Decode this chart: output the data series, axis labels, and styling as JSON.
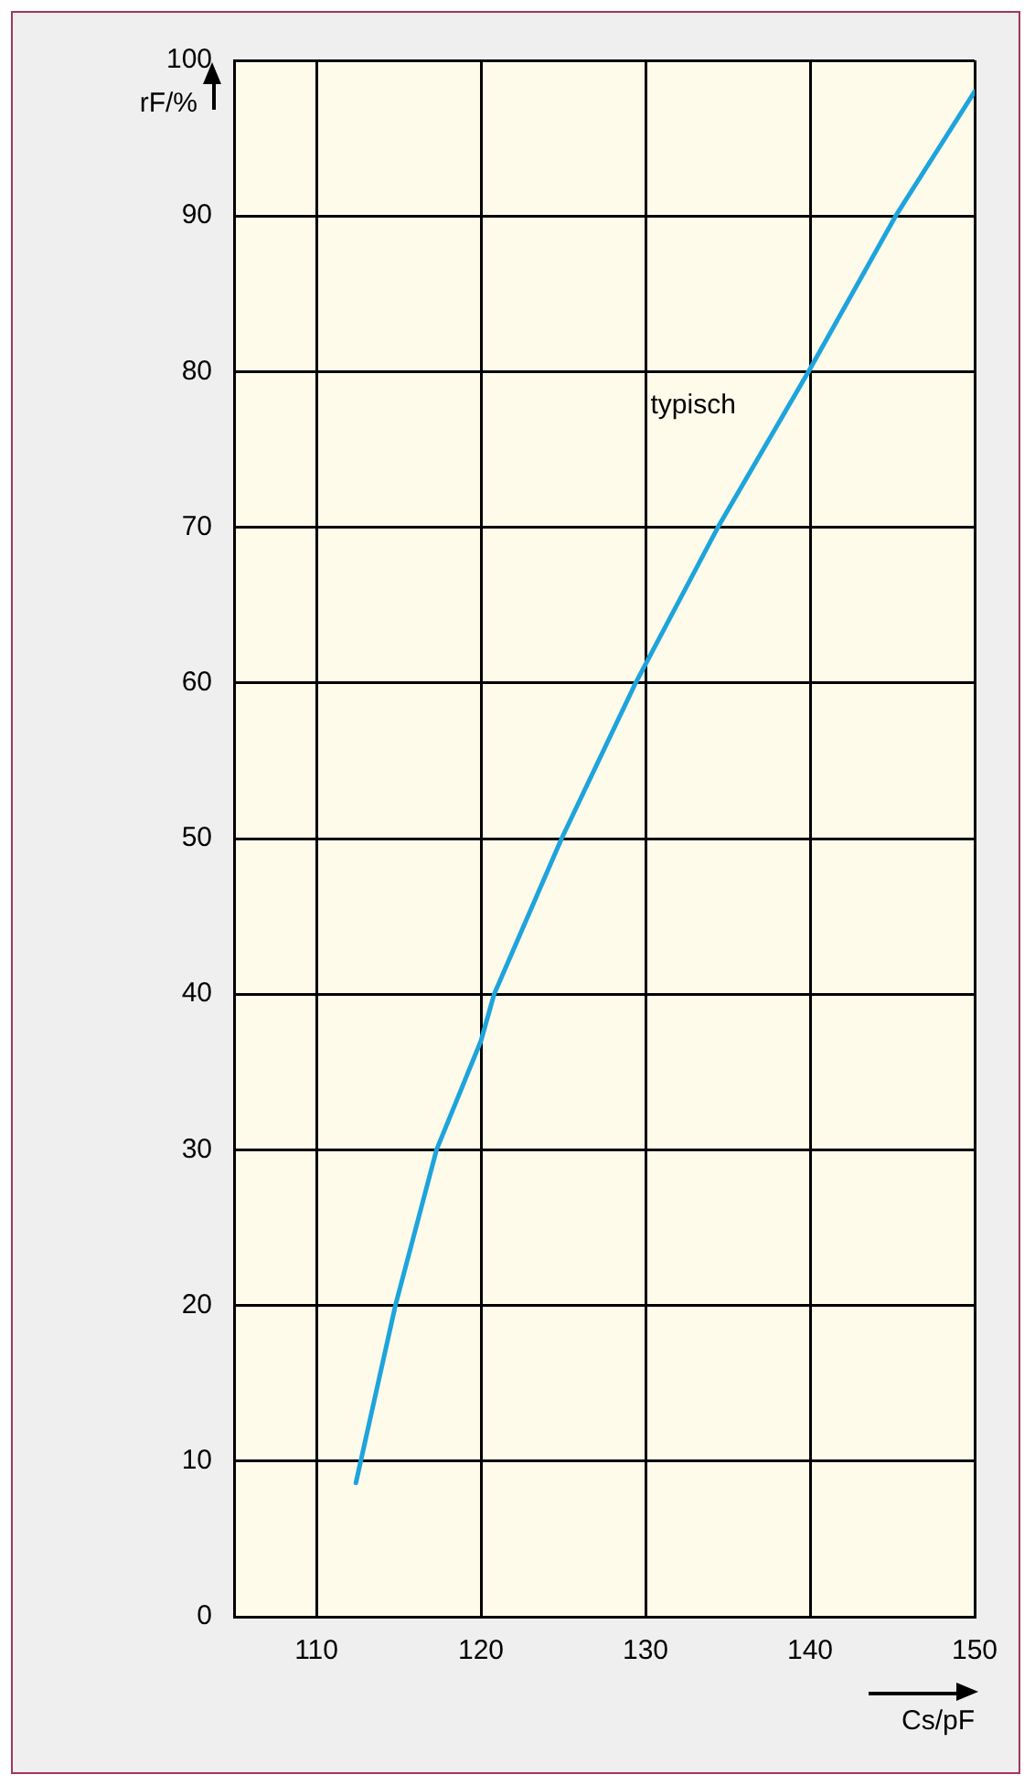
{
  "chart_data": {
    "type": "line",
    "xlabel": "Cs/pF",
    "ylabel": "rF/%",
    "x": [
      112.4,
      114.8,
      117.3,
      120,
      120.8,
      124.9,
      129.4,
      134.4,
      139.9,
      145.2,
      150
    ],
    "series": [
      {
        "color": "#1ea4dc",
        "values": [
          8.6,
          20,
          30,
          37,
          40,
          50,
          60,
          70,
          80,
          90,
          98
        ]
      }
    ],
    "xlim": [
      105,
      150
    ],
    "xticks": [
      110,
      120,
      130,
      140,
      150
    ],
    "ylim": [
      0,
      100
    ],
    "yticks": [
      0,
      10,
      20,
      30,
      40,
      50,
      60,
      70,
      80,
      90,
      100
    ],
    "annotations": [
      "typisch"
    ],
    "grid": true,
    "legend": false,
    "marker": "none",
    "line_style": "solid"
  }
}
